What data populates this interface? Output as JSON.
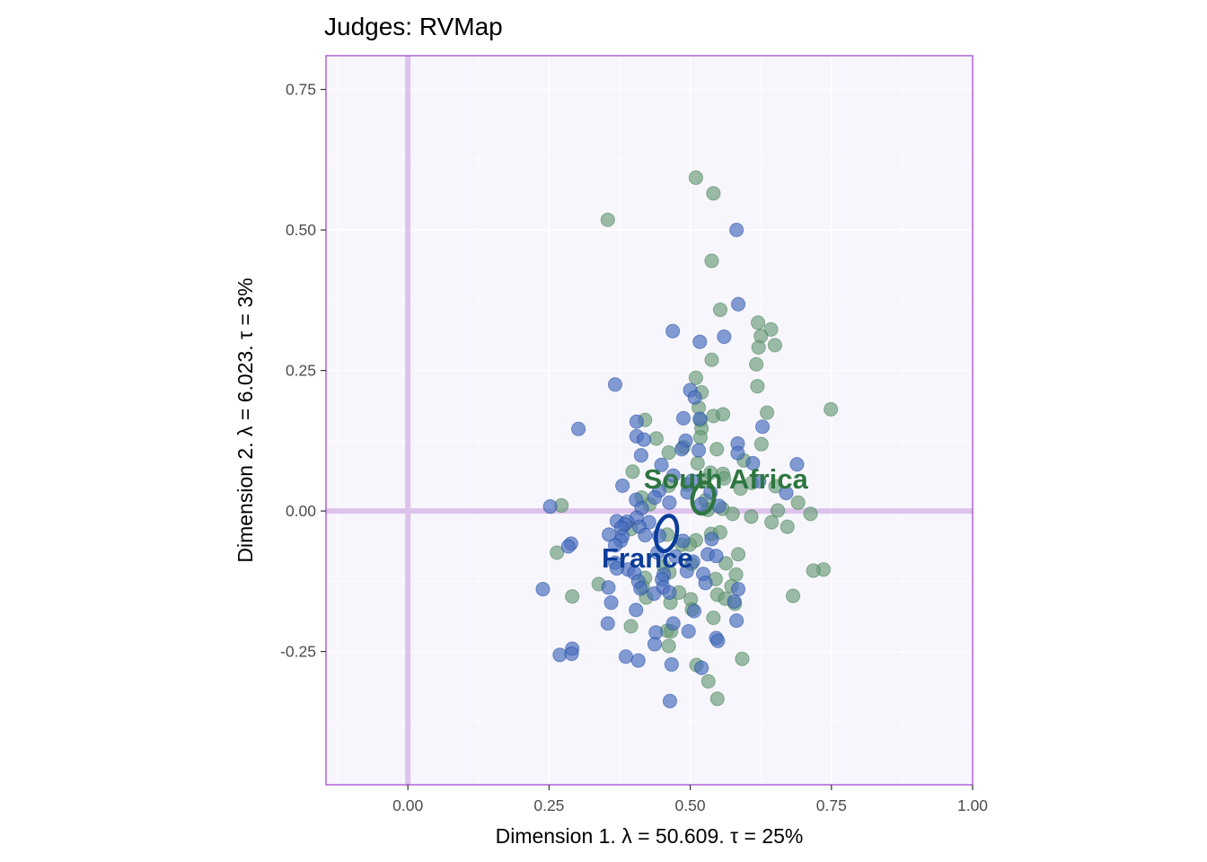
{
  "chart_data": {
    "type": "scatter",
    "title": "Judges: RVMap",
    "xlabel": "Dimension 1.   λ = 50.609.  τ = 25%",
    "ylabel": "Dimension 2.   λ = 6.023.  τ = 3%",
    "xlim": [
      -0.145,
      1.0
    ],
    "ylim": [
      -0.487,
      0.81
    ],
    "x_ticks": [
      0.0,
      0.25,
      0.5,
      0.75,
      1.0
    ],
    "x_tick_labels": [
      "0.00",
      "0.25",
      "0.50",
      "0.75",
      "1.00"
    ],
    "y_ticks": [
      -0.25,
      0.0,
      0.25,
      0.5,
      0.75
    ],
    "y_tick_labels": [
      "-0.25",
      "0.00",
      "0.25",
      "0.50",
      "0.75"
    ],
    "grid": true,
    "panel_background": "#f8f6fd",
    "panel_border_color": "#9b3fcf",
    "origin_line_color": "#ddc3ec",
    "series": [
      {
        "name": "South Africa",
        "color": "#2e7640",
        "point_color": "#6d9e7b",
        "points": [
          [
            0.51,
            0.593
          ],
          [
            0.541,
            0.565
          ],
          [
            0.354,
            0.518
          ],
          [
            0.538,
            0.445
          ],
          [
            0.553,
            0.358
          ],
          [
            0.62,
            0.335
          ],
          [
            0.643,
            0.323
          ],
          [
            0.625,
            0.311
          ],
          [
            0.621,
            0.291
          ],
          [
            0.65,
            0.295
          ],
          [
            0.538,
            0.269
          ],
          [
            0.617,
            0.261
          ],
          [
            0.51,
            0.237
          ],
          [
            0.619,
            0.222
          ],
          [
            0.52,
            0.211
          ],
          [
            0.515,
            0.184
          ],
          [
            0.749,
            0.181
          ],
          [
            0.636,
            0.175
          ],
          [
            0.541,
            0.169
          ],
          [
            0.558,
            0.172
          ],
          [
            0.42,
            0.162
          ],
          [
            0.518,
            0.161
          ],
          [
            0.52,
            0.147
          ],
          [
            0.518,
            0.131
          ],
          [
            0.44,
            0.129
          ],
          [
            0.626,
            0.119
          ],
          [
            0.547,
            0.11
          ],
          [
            0.488,
            0.114
          ],
          [
            0.462,
            0.104
          ],
          [
            0.595,
            0.09
          ],
          [
            0.398,
            0.07
          ],
          [
            0.513,
            0.085
          ],
          [
            0.558,
            0.066
          ],
          [
            0.536,
            0.068
          ],
          [
            0.56,
            0.058
          ],
          [
            0.525,
            0.055
          ],
          [
            0.609,
            0.05
          ],
          [
            0.495,
            0.047
          ],
          [
            0.462,
            0.045
          ],
          [
            0.414,
            0.024
          ],
          [
            0.527,
            0.019
          ],
          [
            0.589,
            0.04
          ],
          [
            0.651,
            0.044
          ],
          [
            0.691,
            0.015
          ],
          [
            0.272,
            0.01
          ],
          [
            0.428,
            0.012
          ],
          [
            0.557,
            0.004
          ],
          [
            0.531,
            0.002
          ],
          [
            0.575,
            -0.005
          ],
          [
            0.655,
            0.001
          ],
          [
            0.713,
            -0.005
          ],
          [
            0.608,
            -0.01
          ],
          [
            0.644,
            -0.02
          ],
          [
            0.672,
            -0.028
          ],
          [
            0.395,
            -0.032
          ],
          [
            0.459,
            -0.042
          ],
          [
            0.537,
            -0.041
          ],
          [
            0.553,
            -0.038
          ],
          [
            0.51,
            -0.052
          ],
          [
            0.485,
            -0.06
          ],
          [
            0.264,
            -0.074
          ],
          [
            0.499,
            -0.06
          ],
          [
            0.585,
            -0.077
          ],
          [
            0.453,
            -0.098
          ],
          [
            0.502,
            -0.094
          ],
          [
            0.563,
            -0.093
          ],
          [
            0.736,
            -0.104
          ],
          [
            0.718,
            -0.106
          ],
          [
            0.463,
            -0.109
          ],
          [
            0.581,
            -0.113
          ],
          [
            0.42,
            -0.119
          ],
          [
            0.545,
            -0.121
          ],
          [
            0.338,
            -0.13
          ],
          [
            0.416,
            -0.135
          ],
          [
            0.573,
            -0.134
          ],
          [
            0.48,
            -0.145
          ],
          [
            0.548,
            -0.149
          ],
          [
            0.291,
            -0.152
          ],
          [
            0.422,
            -0.154
          ],
          [
            0.562,
            -0.156
          ],
          [
            0.682,
            -0.151
          ],
          [
            0.501,
            -0.157
          ],
          [
            0.465,
            -0.163
          ],
          [
            0.579,
            -0.165
          ],
          [
            0.503,
            -0.175
          ],
          [
            0.541,
            -0.19
          ],
          [
            0.395,
            -0.205
          ],
          [
            0.459,
            -0.213
          ],
          [
            0.466,
            -0.214
          ],
          [
            0.462,
            -0.24
          ],
          [
            0.592,
            -0.263
          ],
          [
            0.511,
            -0.274
          ],
          [
            0.532,
            -0.303
          ],
          [
            0.548,
            -0.334
          ]
        ]
      },
      {
        "name": "France",
        "color": "#0b3c99",
        "point_color": "#4a6fbc",
        "points": [
          [
            0.582,
            0.5
          ],
          [
            0.585,
            0.368
          ],
          [
            0.469,
            0.32
          ],
          [
            0.517,
            0.301
          ],
          [
            0.56,
            0.31
          ],
          [
            0.367,
            0.225
          ],
          [
            0.5,
            0.215
          ],
          [
            0.508,
            0.202
          ],
          [
            0.302,
            0.146
          ],
          [
            0.405,
            0.159
          ],
          [
            0.488,
            0.165
          ],
          [
            0.517,
            0.164
          ],
          [
            0.628,
            0.15
          ],
          [
            0.405,
            0.133
          ],
          [
            0.418,
            0.127
          ],
          [
            0.492,
            0.125
          ],
          [
            0.584,
            0.12
          ],
          [
            0.485,
            0.11
          ],
          [
            0.413,
            0.099
          ],
          [
            0.515,
            0.108
          ],
          [
            0.584,
            0.103
          ],
          [
            0.449,
            0.082
          ],
          [
            0.611,
            0.085
          ],
          [
            0.689,
            0.083
          ],
          [
            0.47,
            0.063
          ],
          [
            0.503,
            0.054
          ],
          [
            0.622,
            0.053
          ],
          [
            0.38,
            0.045
          ],
          [
            0.445,
            0.036
          ],
          [
            0.495,
            0.033
          ],
          [
            0.536,
            0.033
          ],
          [
            0.67,
            0.032
          ],
          [
            0.437,
            0.024
          ],
          [
            0.404,
            0.02
          ],
          [
            0.252,
            0.008
          ],
          [
            0.463,
            0.015
          ],
          [
            0.519,
            0.012
          ],
          [
            0.551,
            0.009
          ],
          [
            0.414,
            0.005
          ],
          [
            0.405,
            -0.012
          ],
          [
            0.37,
            -0.018
          ],
          [
            0.388,
            -0.019
          ],
          [
            0.427,
            -0.02
          ],
          [
            0.384,
            -0.024
          ],
          [
            0.41,
            -0.028
          ],
          [
            0.378,
            -0.03
          ],
          [
            0.42,
            -0.043
          ],
          [
            0.356,
            -0.042
          ],
          [
            0.38,
            -0.045
          ],
          [
            0.445,
            -0.044
          ],
          [
            0.377,
            -0.053
          ],
          [
            0.289,
            -0.058
          ],
          [
            0.487,
            -0.053
          ],
          [
            0.284,
            -0.063
          ],
          [
            0.367,
            -0.061
          ],
          [
            0.538,
            -0.05
          ],
          [
            0.442,
            -0.074
          ],
          [
            0.531,
            -0.077
          ],
          [
            0.474,
            -0.081
          ],
          [
            0.367,
            -0.092
          ],
          [
            0.505,
            -0.09
          ],
          [
            0.546,
            -0.08
          ],
          [
            0.39,
            -0.104
          ],
          [
            0.37,
            -0.102
          ],
          [
            0.494,
            -0.107
          ],
          [
            0.401,
            -0.11
          ],
          [
            0.523,
            -0.112
          ],
          [
            0.453,
            -0.113
          ],
          [
            0.408,
            -0.125
          ],
          [
            0.45,
            -0.122
          ],
          [
            0.355,
            -0.136
          ],
          [
            0.412,
            -0.138
          ],
          [
            0.452,
            -0.136
          ],
          [
            0.527,
            -0.128
          ],
          [
            0.436,
            -0.147
          ],
          [
            0.239,
            -0.139
          ],
          [
            0.463,
            -0.145
          ],
          [
            0.585,
            -0.139
          ],
          [
            0.578,
            -0.161
          ],
          [
            0.36,
            -0.163
          ],
          [
            0.404,
            -0.176
          ],
          [
            0.507,
            -0.178
          ],
          [
            0.582,
            -0.195
          ],
          [
            0.354,
            -0.2
          ],
          [
            0.47,
            -0.2
          ],
          [
            0.439,
            -0.216
          ],
          [
            0.497,
            -0.214
          ],
          [
            0.546,
            -0.226
          ],
          [
            0.437,
            -0.237
          ],
          [
            0.549,
            -0.231
          ],
          [
            0.291,
            -0.245
          ],
          [
            0.269,
            -0.256
          ],
          [
            0.29,
            -0.254
          ],
          [
            0.386,
            -0.259
          ],
          [
            0.408,
            -0.266
          ],
          [
            0.467,
            -0.273
          ],
          [
            0.52,
            -0.279
          ],
          [
            0.464,
            -0.338
          ]
        ]
      }
    ],
    "group_labels": [
      {
        "name": "South Africa",
        "x": 0.563,
        "y": 0.058,
        "color": "#2e7640"
      },
      {
        "name": "France",
        "x": 0.424,
        "y": -0.083,
        "color": "#0b3c99"
      }
    ],
    "group_ellipses": [
      {
        "name": "South Africa",
        "cx": 0.523,
        "cy": 0.023,
        "rx": 0.019,
        "ry": 0.028,
        "angle": 12,
        "color": "#2e7640"
      },
      {
        "name": "France",
        "cx": 0.458,
        "cy": -0.04,
        "rx": 0.018,
        "ry": 0.032,
        "angle": 12,
        "color": "#0b3c99"
      }
    ]
  }
}
